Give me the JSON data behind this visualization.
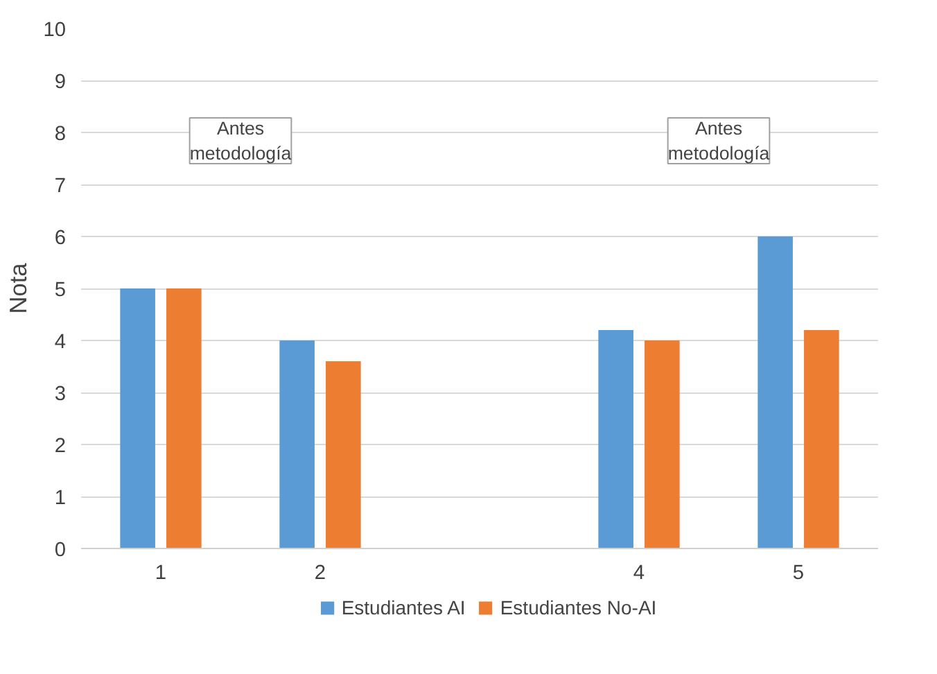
{
  "chart_data": {
    "type": "bar",
    "ylabel": "Nota",
    "categories": [
      "1",
      "2",
      null,
      "4",
      "5"
    ],
    "series": [
      {
        "name": "Estudiantes AI",
        "color": "#5b9bd5",
        "values": [
          5,
          4,
          null,
          4.2,
          6
        ]
      },
      {
        "name": "Estudiantes No-AI",
        "color": "#ed7d31",
        "values": [
          5,
          3.6,
          null,
          4,
          4.2
        ]
      }
    ],
    "ylim": [
      0,
      10
    ],
    "yticks": [
      0,
      1,
      2,
      3,
      4,
      5,
      6,
      7,
      8,
      9,
      10
    ],
    "grid": "y",
    "legend": "bottom",
    "annotations": [
      "Antes\nmetodología",
      "Antes\nmetodología"
    ]
  }
}
